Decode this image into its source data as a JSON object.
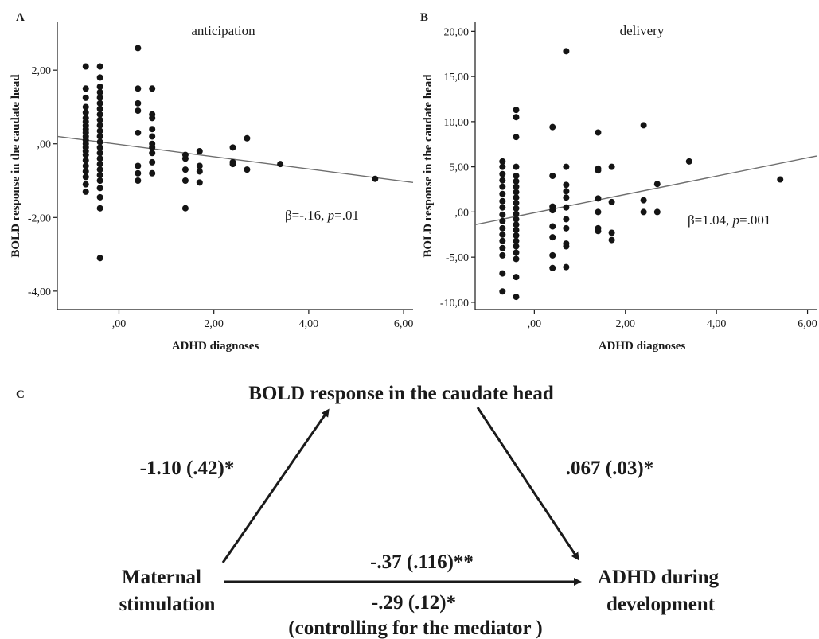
{
  "panel_letters": {
    "a": "A",
    "b": "B",
    "c": "C"
  },
  "chart_data": [
    {
      "type": "scatter",
      "panel": "A",
      "title": "anticipation",
      "xlabel": "ADHD diagnoses",
      "ylabel": "BOLD response in the caudate head",
      "xlim": [
        -1.3,
        6.2
      ],
      "ylim": [
        -4.5,
        3.3
      ],
      "xticks": [
        0,
        2,
        4,
        6
      ],
      "xtick_labels": [
        ",00",
        "2,00",
        "4,00",
        "6,00"
      ],
      "yticks": [
        -4,
        -2,
        0,
        2
      ],
      "ytick_labels": [
        "-4,00",
        "-2,00",
        ",00",
        "2,00"
      ],
      "annotation": "β=-.16, p=.01",
      "fit_line": {
        "x": [
          -1.3,
          6.2
        ],
        "y": [
          0.2,
          -1.05
        ]
      },
      "points": [
        [
          -0.7,
          2.1
        ],
        [
          -0.7,
          1.5
        ],
        [
          -0.7,
          1.25
        ],
        [
          -0.7,
          1.0
        ],
        [
          -0.7,
          0.85
        ],
        [
          -0.7,
          0.7
        ],
        [
          -0.7,
          0.6
        ],
        [
          -0.7,
          0.5
        ],
        [
          -0.7,
          0.4
        ],
        [
          -0.7,
          0.3
        ],
        [
          -0.7,
          0.2
        ],
        [
          -0.7,
          0.1
        ],
        [
          -0.7,
          0.0
        ],
        [
          -0.7,
          -0.1
        ],
        [
          -0.7,
          -0.2
        ],
        [
          -0.7,
          -0.3
        ],
        [
          -0.7,
          -0.45
        ],
        [
          -0.7,
          -0.6
        ],
        [
          -0.7,
          -0.75
        ],
        [
          -0.7,
          -0.9
        ],
        [
          -0.7,
          -1.1
        ],
        [
          -0.7,
          -1.3
        ],
        [
          -0.4,
          2.1
        ],
        [
          -0.4,
          1.8
        ],
        [
          -0.4,
          1.55
        ],
        [
          -0.4,
          1.4
        ],
        [
          -0.4,
          1.25
        ],
        [
          -0.4,
          1.1
        ],
        [
          -0.4,
          0.95
        ],
        [
          -0.4,
          0.8
        ],
        [
          -0.4,
          0.65
        ],
        [
          -0.4,
          0.5
        ],
        [
          -0.4,
          0.35
        ],
        [
          -0.4,
          0.2
        ],
        [
          -0.4,
          0.05
        ],
        [
          -0.4,
          -0.1
        ],
        [
          -0.4,
          -0.25
        ],
        [
          -0.4,
          -0.4
        ],
        [
          -0.4,
          -0.55
        ],
        [
          -0.4,
          -0.7
        ],
        [
          -0.4,
          -0.85
        ],
        [
          -0.4,
          -1.0
        ],
        [
          -0.4,
          -1.2
        ],
        [
          -0.4,
          -1.45
        ],
        [
          -0.4,
          -1.75
        ],
        [
          -0.4,
          -3.1
        ],
        [
          0.4,
          2.6
        ],
        [
          0.4,
          1.5
        ],
        [
          0.4,
          1.1
        ],
        [
          0.4,
          0.9
        ],
        [
          0.4,
          0.3
        ],
        [
          0.4,
          -0.6
        ],
        [
          0.4,
          -0.8
        ],
        [
          0.4,
          -1.0
        ],
        [
          0.7,
          1.5
        ],
        [
          0.7,
          0.8
        ],
        [
          0.7,
          0.7
        ],
        [
          0.7,
          0.4
        ],
        [
          0.7,
          0.2
        ],
        [
          0.7,
          0.0
        ],
        [
          0.7,
          -0.1
        ],
        [
          0.7,
          -0.25
        ],
        [
          0.7,
          -0.5
        ],
        [
          0.7,
          -0.8
        ],
        [
          1.4,
          -0.3
        ],
        [
          1.4,
          -0.4
        ],
        [
          1.4,
          -0.7
        ],
        [
          1.4,
          -1.0
        ],
        [
          1.4,
          -1.75
        ],
        [
          1.7,
          -0.2
        ],
        [
          1.7,
          -0.6
        ],
        [
          1.7,
          -0.75
        ],
        [
          1.7,
          -1.05
        ],
        [
          2.4,
          -0.1
        ],
        [
          2.4,
          -0.5
        ],
        [
          2.4,
          -0.55
        ],
        [
          2.7,
          0.15
        ],
        [
          2.7,
          -0.7
        ],
        [
          3.4,
          -0.55
        ],
        [
          5.4,
          -0.95
        ]
      ]
    },
    {
      "type": "scatter",
      "panel": "B",
      "title": "delivery",
      "xlabel": "ADHD diagnoses",
      "ylabel": "BOLD response in the caudate head",
      "xlim": [
        -1.3,
        6.2
      ],
      "ylim": [
        -10.8,
        21.0
      ],
      "xticks": [
        0,
        2,
        4,
        6
      ],
      "xtick_labels": [
        ",00",
        "2,00",
        "4,00",
        "6,00"
      ],
      "yticks": [
        -10,
        -5,
        0,
        5,
        10,
        15,
        20
      ],
      "ytick_labels": [
        "-10,00",
        "-5,00",
        ",00",
        "5,00",
        "10,00",
        "15,00",
        "20,00"
      ],
      "annotation": "β=1.04, p=.001",
      "fit_line": {
        "x": [
          -1.3,
          6.2
        ],
        "y": [
          -1.4,
          6.2
        ]
      },
      "points": [
        [
          -0.7,
          5.6
        ],
        [
          -0.7,
          5.0
        ],
        [
          -0.7,
          4.2
        ],
        [
          -0.7,
          3.5
        ],
        [
          -0.7,
          2.8
        ],
        [
          -0.7,
          2.0
        ],
        [
          -0.7,
          1.2
        ],
        [
          -0.7,
          0.5
        ],
        [
          -0.7,
          -0.3
        ],
        [
          -0.7,
          -1.0
        ],
        [
          -0.7,
          -1.8
        ],
        [
          -0.7,
          -2.5
        ],
        [
          -0.7,
          -3.2
        ],
        [
          -0.7,
          -4.0
        ],
        [
          -0.7,
          -4.8
        ],
        [
          -0.7,
          -6.8
        ],
        [
          -0.7,
          -8.8
        ],
        [
          -0.4,
          11.3
        ],
        [
          -0.4,
          10.5
        ],
        [
          -0.4,
          8.3
        ],
        [
          -0.4,
          5.0
        ],
        [
          -0.4,
          4.0
        ],
        [
          -0.4,
          3.4
        ],
        [
          -0.4,
          2.8
        ],
        [
          -0.4,
          2.2
        ],
        [
          -0.4,
          1.6
        ],
        [
          -0.4,
          1.0
        ],
        [
          -0.4,
          0.4
        ],
        [
          -0.4,
          -0.2
        ],
        [
          -0.4,
          -0.8
        ],
        [
          -0.4,
          -1.4
        ],
        [
          -0.4,
          -2.0
        ],
        [
          -0.4,
          -2.6
        ],
        [
          -0.4,
          -3.2
        ],
        [
          -0.4,
          -3.8
        ],
        [
          -0.4,
          -4.5
        ],
        [
          -0.4,
          -5.2
        ],
        [
          -0.4,
          -7.2
        ],
        [
          -0.4,
          -9.4
        ],
        [
          0.4,
          9.4
        ],
        [
          0.4,
          4.0
        ],
        [
          0.4,
          0.6
        ],
        [
          0.4,
          0.2
        ],
        [
          0.4,
          -1.6
        ],
        [
          0.4,
          -2.8
        ],
        [
          0.4,
          -4.8
        ],
        [
          0.4,
          -6.2
        ],
        [
          0.7,
          17.8
        ],
        [
          0.7,
          5.0
        ],
        [
          0.7,
          3.0
        ],
        [
          0.7,
          2.3
        ],
        [
          0.7,
          1.6
        ],
        [
          0.7,
          0.5
        ],
        [
          0.7,
          -0.8
        ],
        [
          0.7,
          -1.8
        ],
        [
          0.7,
          -3.5
        ],
        [
          0.7,
          -3.8
        ],
        [
          0.7,
          -6.1
        ],
        [
          1.4,
          8.8
        ],
        [
          1.4,
          4.8
        ],
        [
          1.4,
          4.6
        ],
        [
          1.4,
          1.5
        ],
        [
          1.4,
          0.0
        ],
        [
          1.4,
          -1.8
        ],
        [
          1.4,
          -2.1
        ],
        [
          1.7,
          5.0
        ],
        [
          1.7,
          1.1
        ],
        [
          1.7,
          -2.3
        ],
        [
          1.7,
          -3.1
        ],
        [
          2.4,
          9.6
        ],
        [
          2.4,
          1.3
        ],
        [
          2.4,
          0.0
        ],
        [
          2.7,
          3.1
        ],
        [
          2.7,
          0.0
        ],
        [
          3.4,
          5.6
        ],
        [
          5.4,
          3.6
        ]
      ]
    }
  ],
  "diagram": {
    "mediator": "BOLD response in the caudate head",
    "path_a": "-1.10 (.42)*",
    "path_b": ".067 (.03)*",
    "predictor_line1": "Maternal",
    "predictor_line2": "stimulation",
    "outcome_line1": "ADHD during",
    "outcome_line2": "development",
    "path_c": "-.37 (.116)**",
    "path_c_prime": "-.29 (.12)*",
    "control_note": "(controlling for the mediator )"
  }
}
